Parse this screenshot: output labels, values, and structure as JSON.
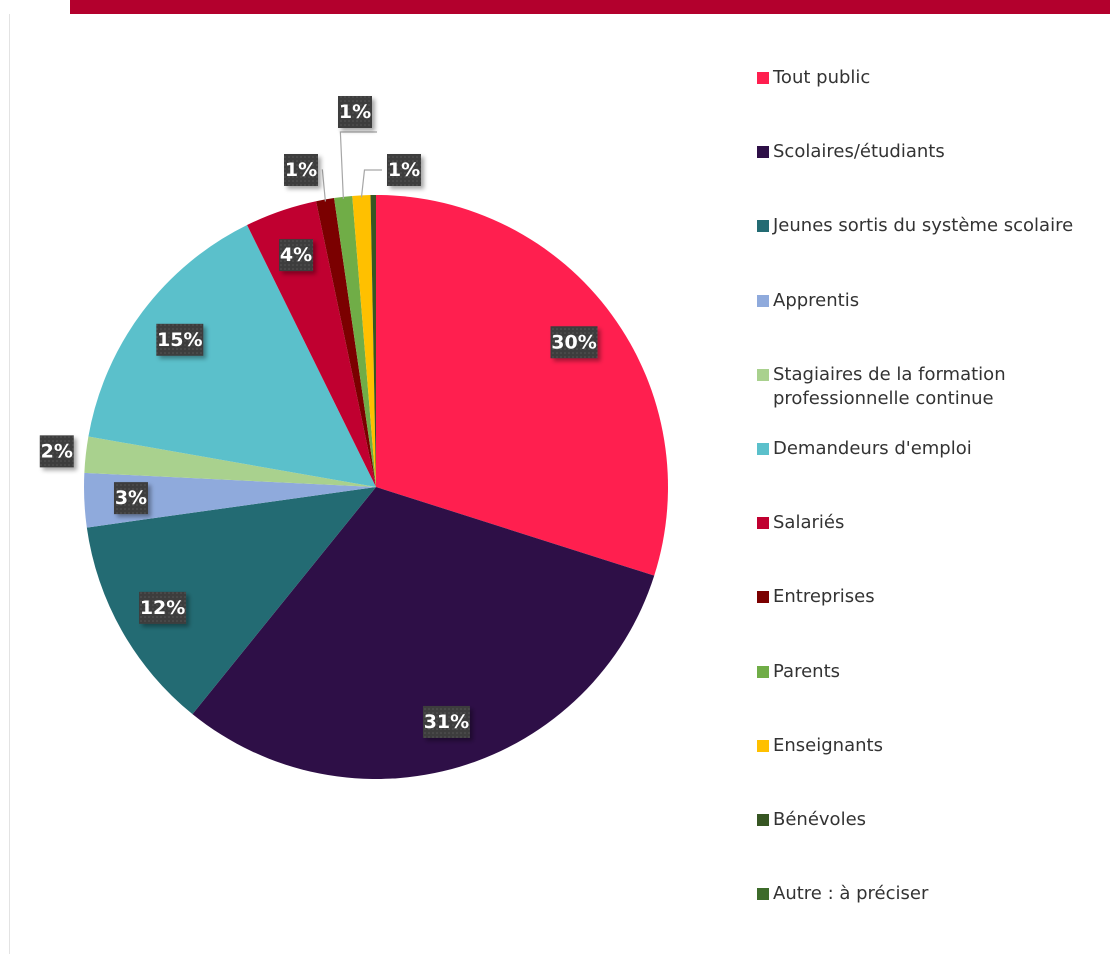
{
  "chart_data": {
    "type": "pie",
    "categories": [
      "Tout public",
      "Scolaires/étudiants",
      "Jeunes sortis du système scolaire",
      "Apprentis",
      "Stagiaires de la formation professionnelle continue",
      "Demandeurs d'emploi",
      "Salariés",
      "Entreprises",
      "Parents",
      "Enseignants",
      "Bénévoles",
      "Autre : à préciser"
    ],
    "values": [
      30,
      31,
      12,
      3,
      2,
      15,
      4,
      1,
      1,
      1,
      0.3,
      0
    ],
    "value_labels": [
      "30%",
      "31%",
      "12%",
      "3%",
      "2%",
      "15%",
      "4%",
      "1%",
      "1%",
      "1%",
      null,
      null
    ],
    "colors": [
      "#ff1f4f",
      "#2e0f47",
      "#236b73",
      "#8faadc",
      "#a9d18e",
      "#5bc0cb",
      "#c00030",
      "#7b0000",
      "#70ad47",
      "#ffc000",
      "#375623",
      "#3d6b2a"
    ],
    "legend": "right"
  }
}
